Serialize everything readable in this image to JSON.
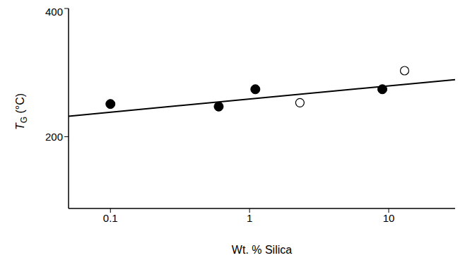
{
  "chart_data": {
    "type": "scatter",
    "xlabel": "Wt. % Silica",
    "ylabel": "TG (°C)",
    "log": "x",
    "xlim": [
      0.05,
      30
    ],
    "xticks": [
      0.1,
      1,
      10
    ],
    "ylim": [
      88,
      400
    ],
    "yticks": [
      200,
      400
    ],
    "grid": false,
    "series": [
      {
        "type": "scatter",
        "marker": "filled_circle",
        "color": "#000000",
        "x": [
          0.1,
          0.6,
          1.1,
          9
        ],
        "values": [
          251,
          247,
          274,
          274
        ]
      },
      {
        "type": "scatter",
        "marker": "open_circle",
        "color": "#000000",
        "x": [
          2.3,
          13
        ],
        "values": [
          253,
          303
        ]
      },
      {
        "type": "line",
        "line_style": "solid",
        "color": "#000000",
        "x": [
          0.05,
          30
        ],
        "values": [
          232,
          289
        ]
      }
    ]
  }
}
